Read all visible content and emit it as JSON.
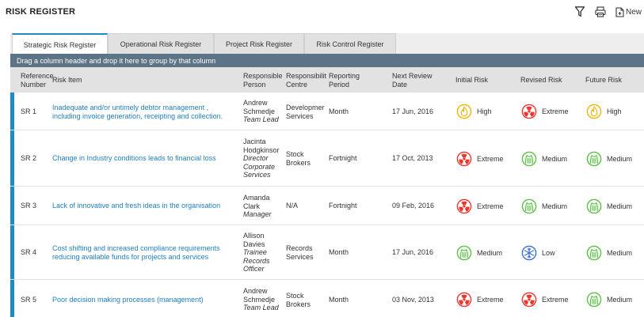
{
  "header": {
    "title": "RISK REGISTER",
    "new_label": "New"
  },
  "toolbar_icons": [
    "filter-icon",
    "print-icon",
    "new-document-icon"
  ],
  "tabs": [
    {
      "label": "Strategic Risk Register",
      "active": true
    },
    {
      "label": "Operational Risk Register",
      "active": false
    },
    {
      "label": "Project Risk Register",
      "active": false
    },
    {
      "label": "Risk Control Register",
      "active": false
    }
  ],
  "group_hint": "Drag a column header and drop it here to group by that column",
  "columns": {
    "ref_1": "Reference",
    "ref_2": "Number",
    "item": "Risk Item",
    "person_1": "Responsible",
    "person_2": "Person",
    "centre_1": "Responsibility",
    "centre_2": "Centre",
    "period_1": "Reporting",
    "period_2": "Period",
    "date_1": "Next Review",
    "date_2": "Date",
    "initial": "Initial Risk",
    "revised": "Revised Risk",
    "future": "Future Risk"
  },
  "risk_colors": {
    "High": "#f0b400",
    "Extreme": "#e8382f",
    "Medium": "#5cbf47",
    "Low": "#3d6fd6"
  },
  "rows": [
    {
      "ref": "SR 1",
      "item": [
        "Inadequate and/or untimely debtor management ,",
        "including invoice generation, receipting and collection."
      ],
      "person": [
        "Andrew",
        "Schmedje"
      ],
      "role": [
        "Team Lead"
      ],
      "centre": [
        "Developmer",
        "Services"
      ],
      "period": "Month",
      "date": "17 Jun, 2016",
      "initial": "High",
      "revised": "Extreme",
      "future": "High"
    },
    {
      "ref": "SR 2",
      "item": [
        "Change in Industry conditions leads to financial loss"
      ],
      "person": [
        "Jacinta",
        "Hodgkinsor"
      ],
      "role": [
        "Director",
        "Corporate",
        "Services"
      ],
      "centre": [
        "Stock",
        "Brokers"
      ],
      "period": "Fortnight",
      "date": "17 Oct, 2013",
      "initial": "Extreme",
      "revised": "Medium",
      "future": "Medium"
    },
    {
      "ref": "SR 3",
      "item": [
        "Lack of innovative and fresh ideas in the organisation"
      ],
      "person": [
        "Amanda",
        "Clark"
      ],
      "role": [
        "Manager"
      ],
      "centre": [
        "N/A"
      ],
      "period": "Fortnight",
      "date": "09 Feb, 2016",
      "initial": "Extreme",
      "revised": "Medium",
      "future": "Medium"
    },
    {
      "ref": "SR 4",
      "item": [
        "Cost shifting and increased compliance requirements",
        "reducing available funds for projects and services"
      ],
      "person": [
        "Allison",
        "Davies"
      ],
      "role": [
        "Trainee",
        "Records",
        "Officer"
      ],
      "centre": [
        "Records",
        "Services"
      ],
      "period": "Month",
      "date": "17 Jun, 2016",
      "initial": "Medium",
      "revised": "Low",
      "future": "Medium"
    },
    {
      "ref": "SR 5",
      "item": [
        "Poor decision making processes (management)"
      ],
      "person": [
        "Andrew",
        "Schmedje"
      ],
      "role": [
        "Team Lead"
      ],
      "centre": [
        "Stock",
        "Brokers"
      ],
      "period": "Month",
      "date": "03 Nov, 2013",
      "initial": "Extreme",
      "revised": "Extreme",
      "future": "Medium"
    }
  ]
}
